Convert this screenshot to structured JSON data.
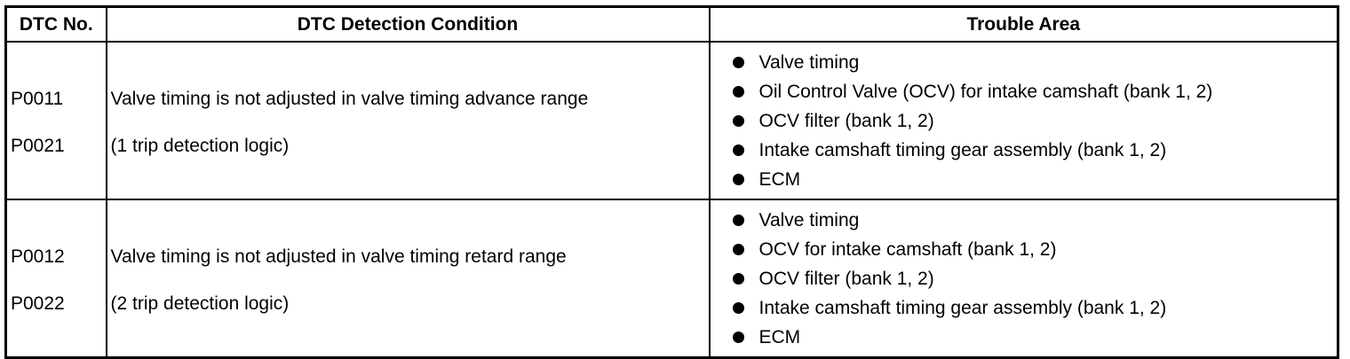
{
  "headers": {
    "dtc_no": "DTC No.",
    "condition": "DTC Detection Condition",
    "trouble_area": "Trouble Area"
  },
  "rows": [
    {
      "codes": [
        "P0011",
        "P0021"
      ],
      "condition": "Valve timing is not adjusted in valve timing advance range",
      "logic": "(1 trip detection logic)",
      "trouble_areas": [
        "Valve timing",
        "Oil Control Valve (OCV) for intake camshaft (bank 1, 2)",
        "OCV filter (bank 1, 2)",
        "Intake camshaft timing gear assembly (bank 1, 2)",
        "ECM"
      ]
    },
    {
      "codes": [
        "P0012",
        "P0022"
      ],
      "condition": "Valve timing is not adjusted in valve timing retard range",
      "logic": "(2 trip detection logic)",
      "trouble_areas": [
        "Valve timing",
        "OCV for intake camshaft (bank 1, 2)",
        "OCV filter (bank 1, 2)",
        "Intake camshaft timing gear assembly (bank 1, 2)",
        "ECM"
      ]
    }
  ]
}
